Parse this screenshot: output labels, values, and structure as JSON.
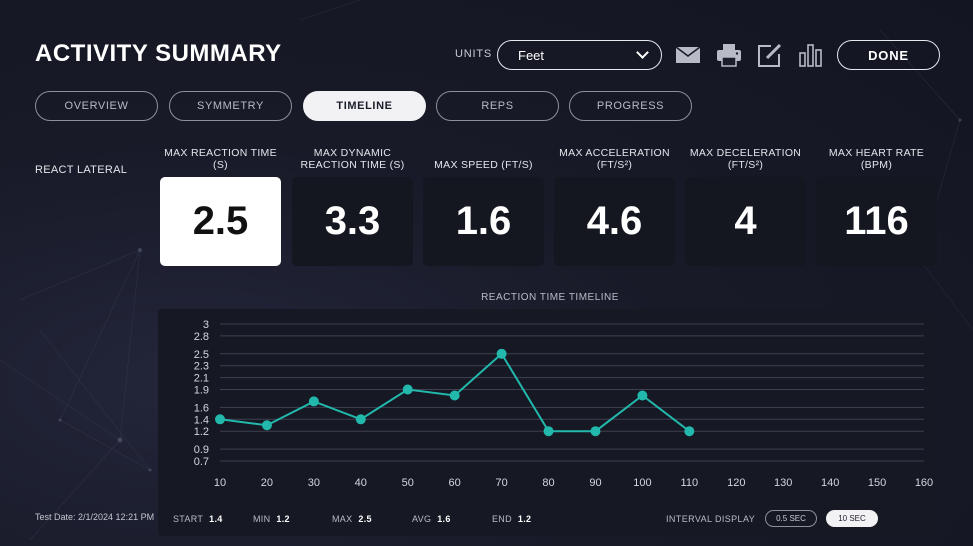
{
  "header": {
    "title": "ACTIVITY SUMMARY",
    "units_label": "UNITS",
    "units_value": "Feet",
    "done_label": "DONE",
    "icons": [
      "mail-icon",
      "print-icon",
      "edit-icon",
      "bar-chart-icon"
    ]
  },
  "tabs": [
    {
      "label": "OVERVIEW",
      "active": false
    },
    {
      "label": "SYMMETRY",
      "active": false
    },
    {
      "label": "TIMELINE",
      "active": true
    },
    {
      "label": "REPS",
      "active": false
    },
    {
      "label": "PROGRESS",
      "active": false
    }
  ],
  "row_label": "REACT LATERAL",
  "metrics": [
    {
      "label_line1": "MAX REACTION TIME",
      "label_line2": "(S)",
      "value": "2.5",
      "active": true
    },
    {
      "label_line1": "MAX DYNAMIC",
      "label_line2": "REACTION TIME (S)",
      "value": "3.3",
      "active": false
    },
    {
      "label_line1": "MAX SPEED (FT/S)",
      "label_line2": "",
      "value": "1.6",
      "active": false
    },
    {
      "label_line1": "MAX ACCELERATION",
      "label_line2": "(FT/S²)",
      "value": "4.6",
      "active": false
    },
    {
      "label_line1": "MAX DECELERATION",
      "label_line2": "(FT/S²)",
      "value": "4",
      "active": false
    },
    {
      "label_line1": "MAX HEART RATE",
      "label_line2": "(BPM)",
      "value": "116",
      "active": false
    }
  ],
  "chart_data": {
    "type": "line",
    "title": "REACTION TIME TIMELINE",
    "xlabel": "",
    "ylabel": "",
    "x_ticks": [
      10,
      20,
      30,
      40,
      50,
      60,
      70,
      80,
      90,
      100,
      110,
      120,
      130,
      140,
      150,
      160
    ],
    "y_ticks": [
      0.7,
      0.9,
      1.2,
      1.4,
      1.6,
      1.9,
      2.1,
      2.3,
      2.5,
      2.8,
      3
    ],
    "xlim": [
      10,
      160
    ],
    "ylim": [
      0.7,
      3
    ],
    "grid": true,
    "line_color": "#22b8ac",
    "series": [
      {
        "x": [
          10,
          20,
          30,
          40,
          50,
          60,
          70,
          80,
          90,
          100,
          110
        ],
        "values": [
          1.4,
          1.3,
          1.7,
          1.4,
          1.9,
          1.8,
          2.5,
          1.2,
          1.2,
          1.8,
          1.2
        ]
      }
    ]
  },
  "footer": {
    "test_date": "Test Date: 2/1/2024 12:21 PM",
    "stats": [
      {
        "label": "START",
        "value": "1.4"
      },
      {
        "label": "MIN",
        "value": "1.2"
      },
      {
        "label": "MAX",
        "value": "2.5"
      },
      {
        "label": "AVG",
        "value": "1.6"
      },
      {
        "label": "END",
        "value": "1.2"
      }
    ],
    "interval_label": "INTERVAL DISPLAY",
    "interval_options": [
      {
        "label": "0.5 SEC",
        "active": false
      },
      {
        "label": "10 SEC",
        "active": true
      }
    ]
  }
}
